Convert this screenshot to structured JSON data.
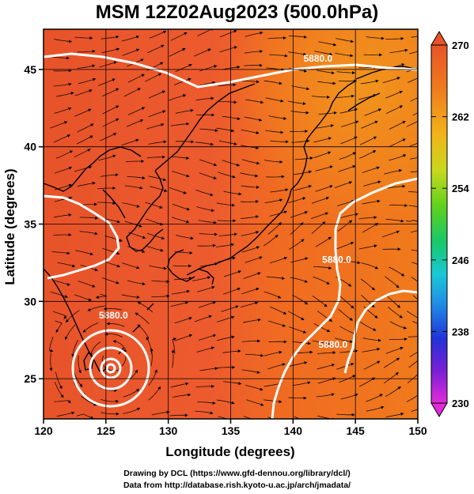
{
  "title": "MSM 12Z02Aug2023 (500.0hPa)",
  "credits": {
    "line1": "Drawing by DCL (https://www.gfd-dennou.org/library/dcl/)",
    "line2": "Data from http://database.rish.kyoto-u.ac.jp/arch/jmadata/"
  },
  "map": {
    "xlabel": "Longitude (degrees)",
    "ylabel": "Latitude  (degrees)",
    "xlim": [
      120,
      150
    ],
    "ylim": [
      22.4,
      47.6
    ],
    "xticks": [
      120,
      125,
      130,
      135,
      140,
      145,
      150
    ],
    "yticks": [
      25,
      30,
      35,
      40,
      45
    ],
    "contour_labels": [
      {
        "text": "5880.0",
        "lon": 142.0,
        "lat": 45.5
      },
      {
        "text": "5880.0",
        "lon": 125.6,
        "lat": 28.9
      },
      {
        "text": "5880.0",
        "lon": 143.5,
        "lat": 32.5
      },
      {
        "text": "5880.0",
        "lon": 143.2,
        "lat": 27.0
      }
    ],
    "typhoon_center": {
      "lon": 125.5,
      "lat": 26.3
    }
  },
  "colorbar": {
    "ticks": [
      270,
      262,
      254,
      246,
      238,
      230
    ],
    "range": [
      230,
      270
    ],
    "colors": [
      "#e12bd8",
      "#7a1fd6",
      "#2233d8",
      "#1f8fe6",
      "#19c9d6",
      "#17c86a",
      "#5fd21c",
      "#c8d81c",
      "#f2b41a",
      "#f07a1c",
      "#e8532a"
    ]
  }
}
